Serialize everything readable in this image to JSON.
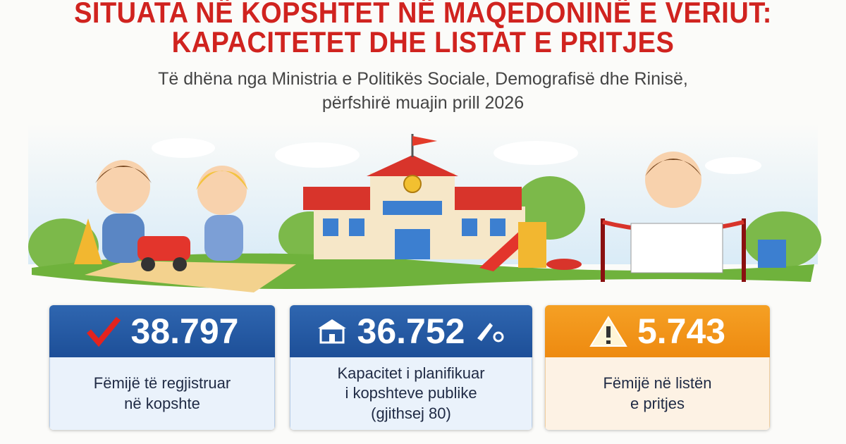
{
  "header": {
    "title": [
      "SITUATA NË KOPSHTET NË MAQEDONINË E VERIUT:",
      "KAPACITETET DHE LISTAT E PRITJES"
    ],
    "subtitle": [
      "Të dhëna nga Ministria e Politikës Sociale, Demografisë dhe Rinisë,",
      "përfshirë muajin prill 2026"
    ]
  },
  "cards": [
    {
      "value": "38.797",
      "label": [
        "Fëmijë të regjistruar",
        "në kopshte"
      ]
    },
    {
      "value": "36.752",
      "label": [
        "Kapacitet i planifikuar",
        "i kopshteve publike",
        "(gjithsej 80)"
      ]
    },
    {
      "value": "5.743",
      "label": [
        "Fëmijë në listën",
        "e pritjes"
      ]
    }
  ]
}
